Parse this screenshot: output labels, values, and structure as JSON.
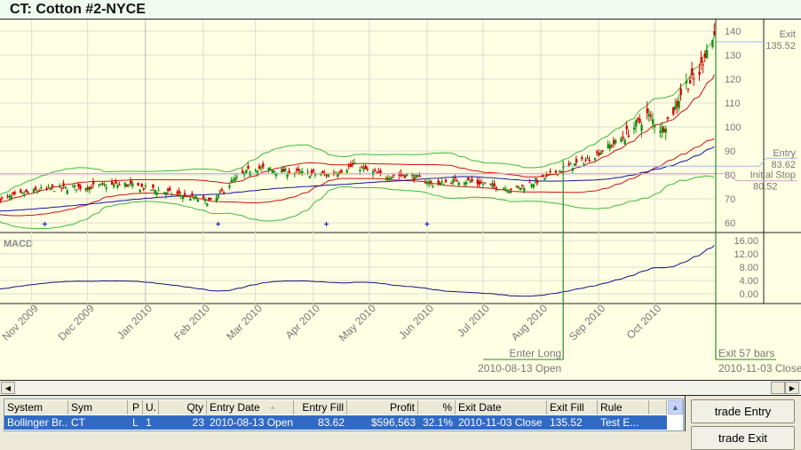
{
  "title": "CT: Cotton #2-NYCE",
  "chart_data": {
    "type": "candlestick",
    "symbol": "CT",
    "price_axis": {
      "ticks": [
        60,
        70,
        80,
        90,
        100,
        110,
        120,
        130,
        140
      ],
      "range": [
        58,
        142
      ]
    },
    "macd_axis": {
      "label": "MACD",
      "ticks": [
        "0.00",
        "4.00",
        "8.00",
        "12.00",
        "16.00"
      ],
      "range": [
        -2,
        18
      ]
    },
    "x_ticks": [
      "Nov 2009",
      "Dec 2009",
      "Jan 2010",
      "Feb 2010",
      "Mar 2010",
      "Apr 2010",
      "May 2010",
      "Jun 2010",
      "Jul 2010",
      "Aug 2010",
      "Sep 2010",
      "Oct 2010"
    ],
    "x_range": [
      "2009-10-15",
      "2010-11-03"
    ],
    "price_path": [
      [
        "2009-10-17",
        70
      ],
      [
        "2009-11-07",
        74
      ],
      [
        "2009-12-01",
        75
      ],
      [
        "2009-12-21",
        76
      ],
      [
        "2010-01-18",
        72
      ],
      [
        "2010-02-06",
        68.5
      ],
      [
        "2010-02-16",
        77
      ],
      [
        "2010-02-28",
        83
      ],
      [
        "2010-03-21",
        81
      ],
      [
        "2010-04-09",
        80
      ],
      [
        "2010-04-23",
        84
      ],
      [
        "2010-05-08",
        79.5
      ],
      [
        "2010-05-22",
        80
      ],
      [
        "2010-06-05",
        76
      ],
      [
        "2010-06-19",
        78
      ],
      [
        "2010-07-09",
        75
      ],
      [
        "2010-07-18",
        74
      ],
      [
        "2010-08-01",
        78
      ],
      [
        "2010-08-13",
        82.6
      ],
      [
        "2010-08-25",
        86
      ],
      [
        "2010-09-13",
        95
      ],
      [
        "2010-09-27",
        105
      ],
      [
        "2010-10-05",
        99
      ],
      [
        "2010-10-12",
        108
      ],
      [
        "2010-10-17",
        118
      ],
      [
        "2010-10-24",
        120
      ],
      [
        "2010-10-28",
        131
      ],
      [
        "2010-11-02",
        138
      ]
    ],
    "signal_markers": [
      "2009-11-08",
      "2010-02-09",
      "2010-04-08",
      "2010-06-01"
    ],
    "colors": {
      "up": "#139113",
      "down": "#d40000",
      "band_outer": "#3fb83f",
      "band_inner": "#cc1111",
      "mid": "#1010a0",
      "macd": "#101080",
      "trade_line": "#2a8a2a",
      "entry_line": "#9ab8e8",
      "stop_line": "#d8a0c8",
      "background": "#ffffe3"
    },
    "levels": {
      "exit": {
        "label": "Exit",
        "value": "135.52"
      },
      "entry": {
        "label": "Entry",
        "value": "83.62"
      },
      "stop": {
        "label": "Initial Stop",
        "value": "80.52"
      }
    },
    "trade": {
      "entry_date": "2010-08-13",
      "exit_date": "2010-11-03",
      "entry_label": "Enter Long",
      "entry_sub": "2010-08-13 Open",
      "exit_label": "Exit 57 bars",
      "exit_sub": "2010-11-03 Close"
    }
  },
  "table": {
    "columns": [
      "System",
      "Sym",
      "P",
      "U.",
      "Qty",
      "Entry Date",
      "Entry Fill",
      "Profit",
      "%",
      "Exit Date",
      "Exit Fill",
      "Rule"
    ],
    "sort_indicator": "▲",
    "rows": [
      [
        "Bollinger Br...",
        "CT",
        "L",
        "1",
        "23",
        "2010-08-13 Open",
        "83.62",
        "$596,563",
        "32.1%",
        "2010-11-03 Close",
        "135.52",
        "Test E..."
      ]
    ]
  },
  "buttons": {
    "trade_entry": "trade Entry",
    "second": "trade Exit"
  }
}
